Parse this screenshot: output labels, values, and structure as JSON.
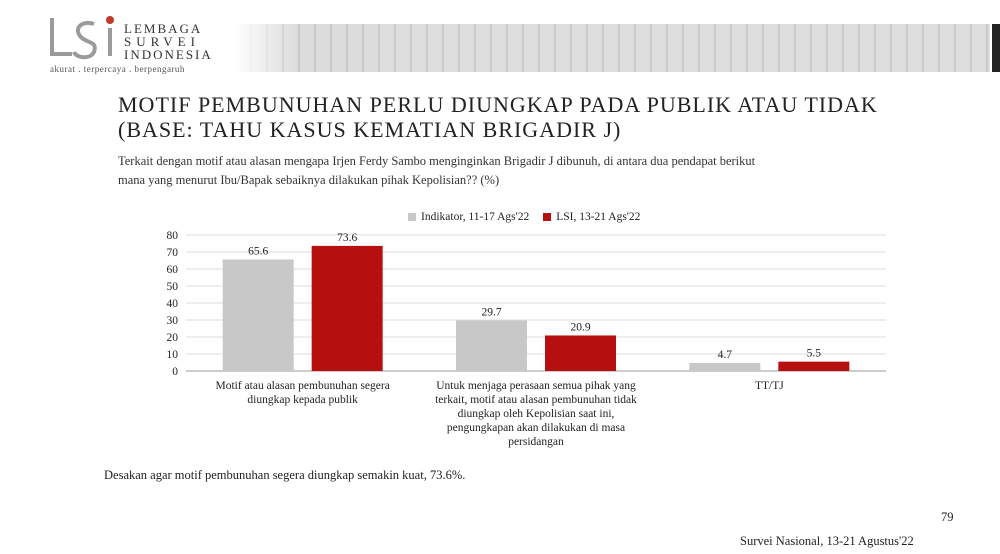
{
  "logo": {
    "words": [
      "LEMBAGA",
      "SURVEI",
      "INDONESIA"
    ],
    "tagline": "akurat . terpercaya . berpengaruh",
    "mark_color": "#c0392b"
  },
  "title_line1": "MOTIF PEMBUNUHAN PERLU DIUNGKAP PADA PUBLIK ATAU TIDAK",
  "title_line2": "(BASE: TAHU KASUS KEMATIAN BRIGADIR J)",
  "subtitle_line1": "Terkait dengan motif atau alasan mengapa Irjen Ferdy Sambo menginginkan Brigadir J dibunuh, di antara dua pendapat berikut",
  "subtitle_line2": "mana yang menurut Ibu/Bapak sebaiknya dilakukan pihak Kepolisian?? (%)",
  "note": "Desakan agar motif pembunuhan segera diungkap semakin kuat, 73.6%.",
  "page_number": "79",
  "footer": "Survei Nasional, 13-21 Agustus'22",
  "chart_data": {
    "type": "bar",
    "categories": [
      "Motif atau alasan pembunuhan segera diungkap kepada publik",
      "Untuk menjaga perasaan semua pihak yang terkait, motif atau alasan pembunuhan tidak diungkap oleh Kepolisian saat ini, pengungkapan akan dilakukan di masa persidangan",
      "TT/TJ"
    ],
    "category_lines": [
      [
        "Motif atau alasan pembunuhan segera",
        "diungkap kepada publik"
      ],
      [
        "Untuk menjaga perasaan semua pihak yang",
        "terkait, motif atau alasan pembunuhan tidak",
        "diungkap oleh Kepolisian saat ini,",
        "pengungkapan akan dilakukan di masa",
        "persidangan"
      ],
      [
        "TT/TJ"
      ]
    ],
    "series": [
      {
        "name": "Indikator, 11-17 Ags'22",
        "color": "#c8c8c8",
        "values": [
          65.6,
          29.7,
          4.7
        ]
      },
      {
        "name": "LSI, 13-21 Ags'22",
        "color": "#b50f0f",
        "values": [
          73.6,
          20.9,
          5.5
        ]
      }
    ],
    "ylim": [
      0,
      80
    ],
    "yticks": [
      0,
      10,
      20,
      30,
      40,
      50,
      60,
      70,
      80
    ],
    "grid": true,
    "legend_position": "top"
  }
}
